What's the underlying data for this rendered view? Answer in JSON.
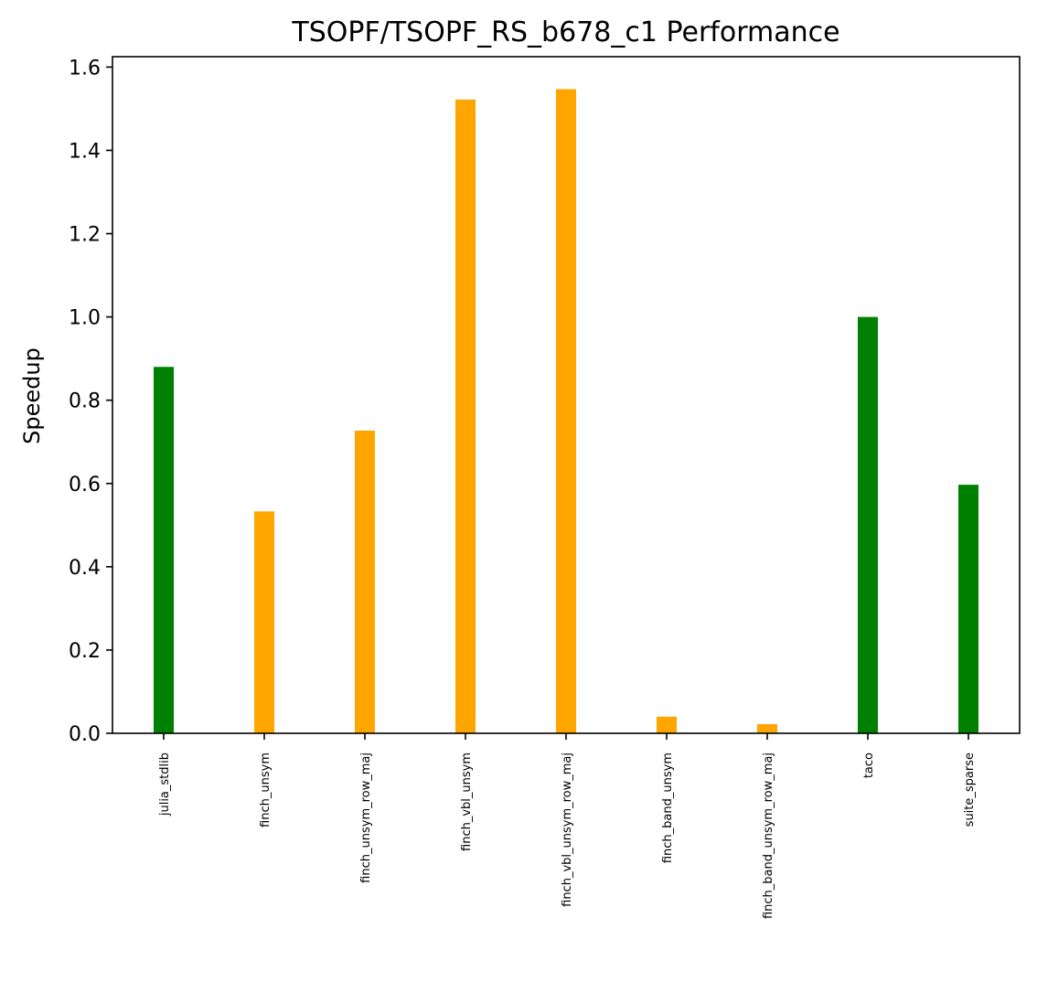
{
  "chart_data": {
    "type": "bar",
    "title": "TSOPF/TSOPF_RS_b678_c1 Performance",
    "xlabel": "",
    "ylabel": "Speedup",
    "categories": [
      "julia_stdlib",
      "finch_unsym",
      "finch_unsym_row_maj",
      "finch_vbl_unsym",
      "finch_vbl_unsym_row_maj",
      "finch_band_unsym",
      "finch_band_unsym_row_maj",
      "taco",
      "suite_sparse"
    ],
    "values": [
      0.88,
      0.533,
      0.727,
      1.522,
      1.547,
      0.04,
      0.022,
      1.0,
      0.597
    ],
    "colors": [
      "#008000",
      "#ffa500",
      "#ffa500",
      "#ffa500",
      "#ffa500",
      "#ffa500",
      "#ffa500",
      "#008000",
      "#008000"
    ],
    "ylim": [
      0,
      1.625
    ],
    "yticks": [
      0.0,
      0.2,
      0.4,
      0.6,
      0.8,
      1.0,
      1.2,
      1.4,
      1.6
    ],
    "ytick_labels": [
      "0.0",
      "0.2",
      "0.4",
      "0.6",
      "0.8",
      "1.0",
      "1.2",
      "1.4",
      "1.6"
    ],
    "grid": false,
    "legend": "none"
  }
}
